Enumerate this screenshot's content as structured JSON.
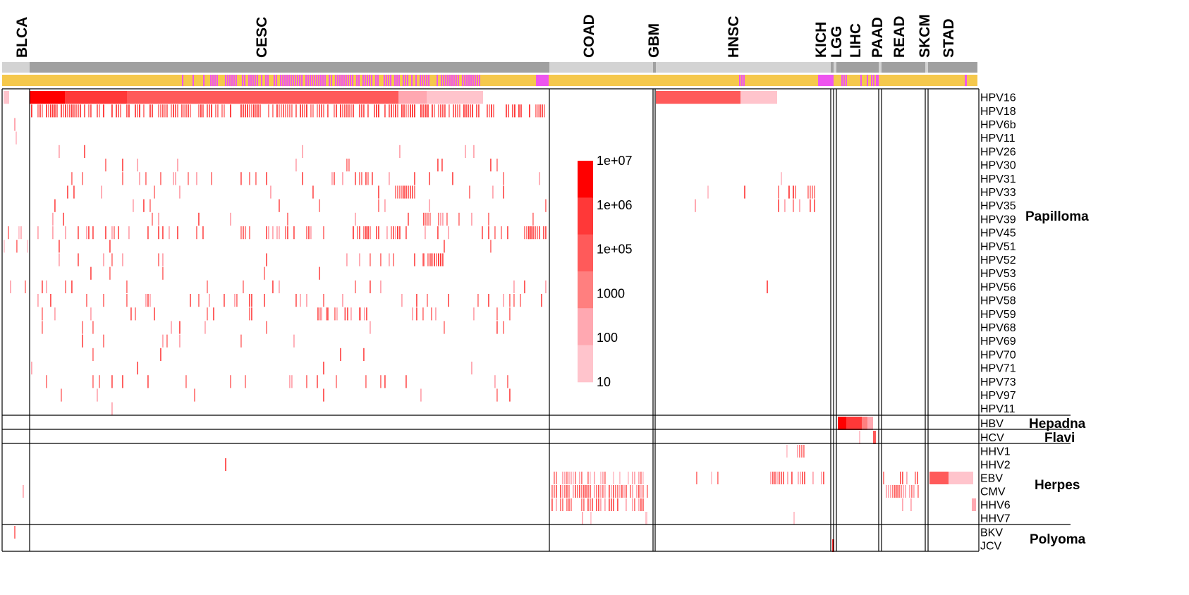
{
  "chart_data": {
    "type": "heatmap",
    "title": "",
    "cancer_types": [
      "BLCA",
      "CESC",
      "COAD",
      "GBM",
      "HNSC",
      "KICH",
      "LGG",
      "LIHC",
      "PAAD",
      "READ",
      "SKCM",
      "STAD"
    ],
    "viruses": [
      "HPV16",
      "HPV18",
      "HPV6b",
      "HPV11",
      "HPV26",
      "HPV30",
      "HPV31",
      "HPV33",
      "HPV35",
      "HPV39",
      "HPV45",
      "HPV51",
      "HPV52",
      "HPV53",
      "HPV56",
      "HPV58",
      "HPV59",
      "HPV68",
      "HPV69",
      "HPV70",
      "HPV71",
      "HPV73",
      "HPV97",
      "HPV11",
      "HBV",
      "HCV",
      "HHV1",
      "HHV2",
      "EBV",
      "CMV",
      "HHV6",
      "HHV7",
      "BKV",
      "JCV"
    ],
    "virus_families": [
      {
        "name": "Papilloma",
        "first": 0,
        "last": 23
      },
      {
        "name": "Hepadna",
        "first": 24,
        "last": 24
      },
      {
        "name": "Flavi",
        "first": 25,
        "last": 25
      },
      {
        "name": "Herpes",
        "first": 26,
        "last": 31
      },
      {
        "name": "Polyoma",
        "first": 32,
        "last": 33
      }
    ],
    "color_scale": {
      "type": "log",
      "ticks": [
        "1e+07",
        "1e+06",
        "1e+05",
        "1000",
        "100",
        "10"
      ],
      "tick_values": [
        10000000,
        1000000,
        100000,
        1000,
        100,
        10
      ],
      "colors": [
        "#ff0000",
        "#ff3838",
        "#ff5a5a",
        "#ff7f7f",
        "#ffa8b1",
        "#ffc4cc"
      ]
    },
    "annotation_colors": {
      "cancer_bar_dark": "#a0a0a0",
      "cancer_bar_light": "#d3d3d3",
      "sample_bar_base": "#f5c84c",
      "sample_bar_alt": "#ee55ee"
    },
    "cells": [
      {
        "cancer": "CESC",
        "virus": "HPV16",
        "value_range": [
          10,
          10000000
        ]
      },
      {
        "cancer": "CESC",
        "virus": "HPV18",
        "value_range": [
          10,
          1000000
        ]
      },
      {
        "cancer": "HNSC",
        "virus": "HPV16",
        "value_range": [
          10,
          1000000
        ]
      },
      {
        "cancer": "HNSC",
        "virus": "HPV33",
        "value_range": [
          10,
          1000
        ]
      },
      {
        "cancer": "LIHC",
        "virus": "HBV",
        "value_range": [
          10,
          10000000
        ]
      },
      {
        "cancer": "PAAD",
        "virus": "HCV",
        "value_range": [
          10,
          1000
        ]
      },
      {
        "cancer": "STAD",
        "virus": "EBV",
        "value_range": [
          100,
          1000000
        ]
      },
      {
        "cancer": "COAD",
        "virus": "CMV",
        "value_range": [
          10,
          1000
        ]
      },
      {
        "cancer": "READ",
        "virus": "CMV",
        "value_range": [
          10,
          1000
        ]
      }
    ]
  }
}
